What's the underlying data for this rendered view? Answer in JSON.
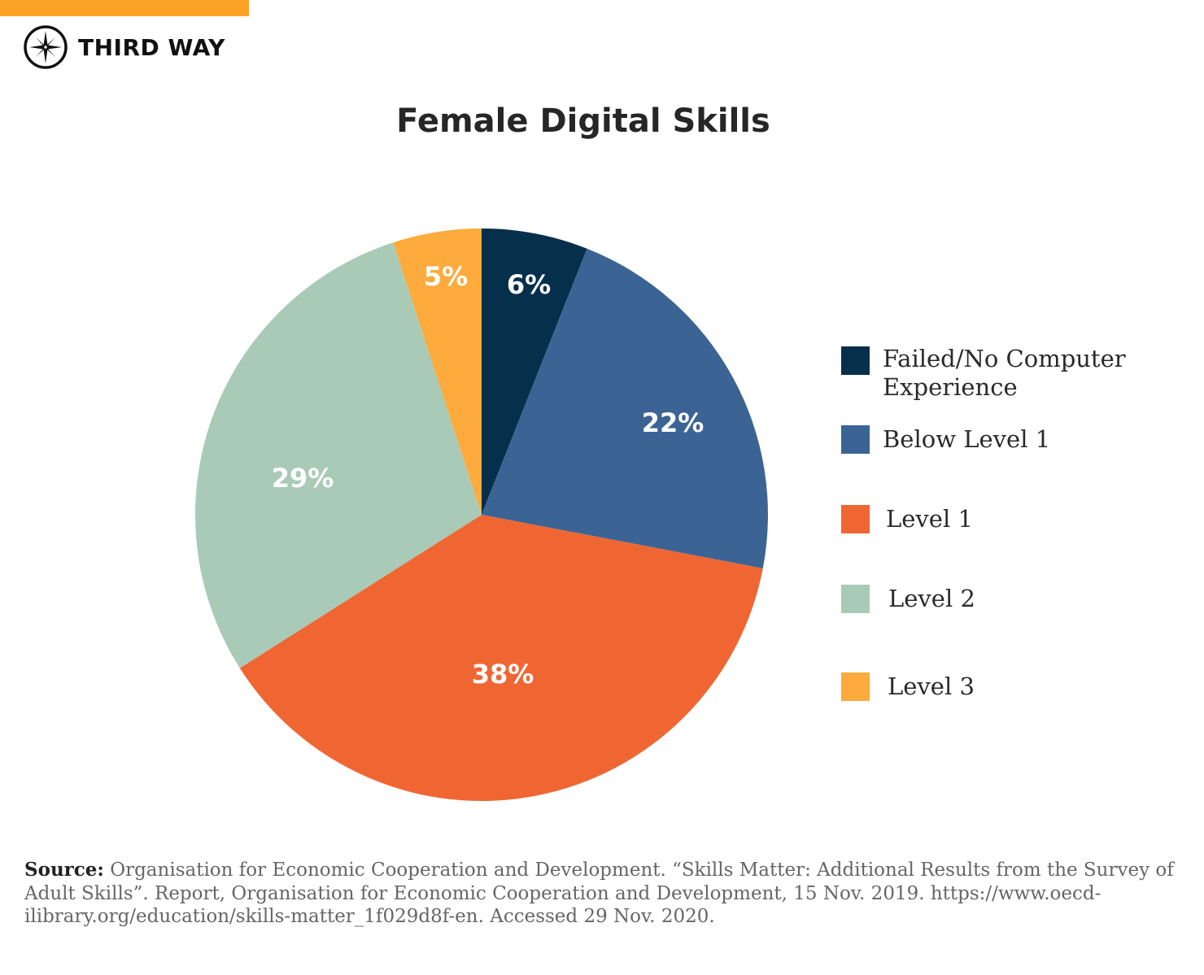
{
  "brand": {
    "name": "THIRD WAY",
    "accent_color": "#fca326",
    "icon": "compass-star-icon"
  },
  "title": "Female Digital Skills",
  "legend": [
    {
      "label": "Failed/No Computer Experience",
      "color": "#062f4b"
    },
    {
      "label": "Below Level 1",
      "color": "#3b6494"
    },
    {
      "label": "Level 1",
      "color": "#f06633"
    },
    {
      "label": "Level 2",
      "color": "#a9cab7"
    },
    {
      "label": "Level 3",
      "color": "#fcab3c"
    }
  ],
  "slice_labels": [
    "6%",
    "22%",
    "38%",
    "29%",
    "5%"
  ],
  "source": {
    "prefix": "Source:",
    "text": "Organisation for Economic Cooperation and Development. “Skills Matter: Additional Results from the Survey of Adult Skills”. Report, Organisation for Economic Cooperation and Development, 15 Nov. 2019. https://www.oecd-ilibrary.org/education/skills-matter_1f029d8f-en. Accessed 29 Nov. 2020."
  },
  "chart_data": {
    "type": "pie",
    "title": "Female Digital Skills",
    "categories": [
      "Failed/No Computer Experience",
      "Below Level 1",
      "Level 1",
      "Level 2",
      "Level 3"
    ],
    "values": [
      6,
      22,
      38,
      29,
      5
    ],
    "unit": "%",
    "colors": [
      "#062f4b",
      "#3b6494",
      "#f06633",
      "#a9cab7",
      "#fcab3c"
    ],
    "start_angle": "12 o'clock",
    "direction": "clockwise",
    "data_labels": [
      "6%",
      "22%",
      "38%",
      "29%",
      "5%"
    ],
    "legend_position": "right"
  }
}
